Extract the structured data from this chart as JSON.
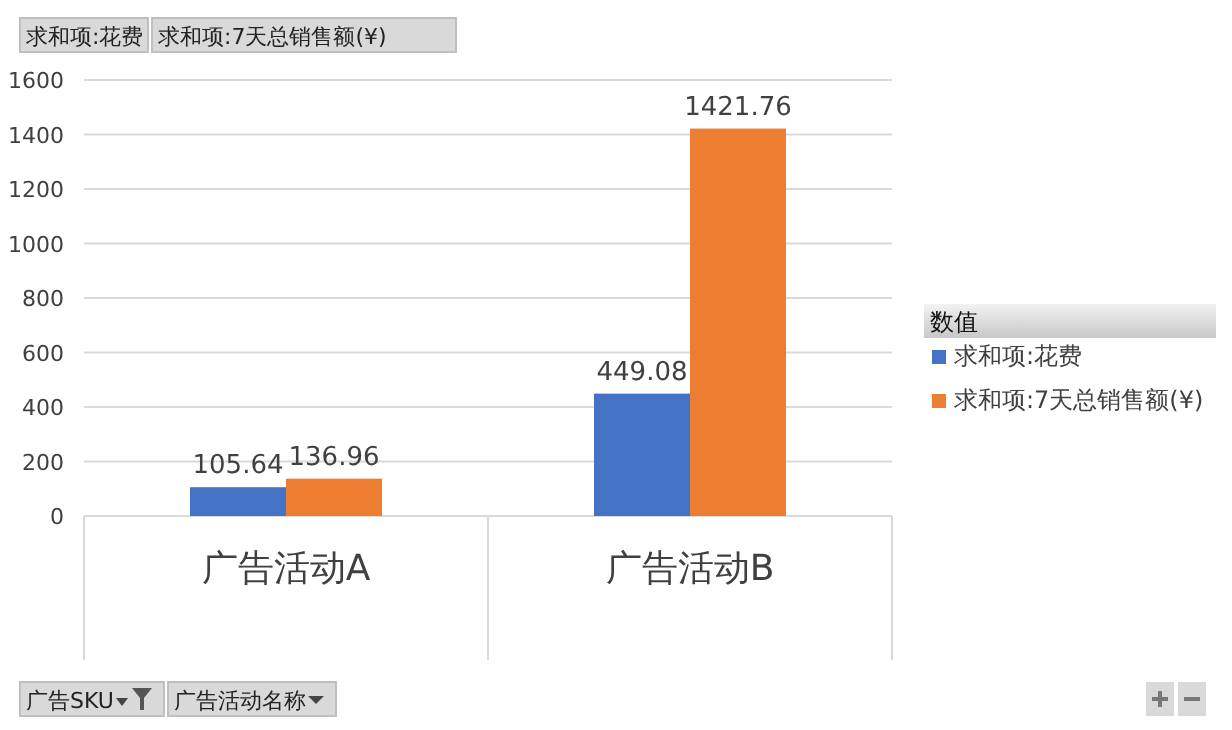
{
  "chart_data": {
    "type": "bar",
    "categories": [
      "广告活动A",
      "广告活动B"
    ],
    "series": [
      {
        "name": "求和项:花费",
        "color": "#4472c4",
        "values": [
          105.64,
          449.08
        ]
      },
      {
        "name": "求和项:7天总销售额(¥)",
        "color": "#ed7d31",
        "values": [
          136.96,
          1421.76
        ]
      }
    ],
    "ylim": [
      0,
      1600
    ],
    "yticks": [
      0,
      200,
      400,
      600,
      800,
      1000,
      1200,
      1400,
      1600
    ],
    "grid": "y",
    "data_labels": true,
    "legend": "right",
    "legend_title": "数值",
    "annotations": [
      "求和项:花费",
      "求和项:7天总销售额(¥)",
      "广告SKU",
      "广告活动名称"
    ]
  }
}
